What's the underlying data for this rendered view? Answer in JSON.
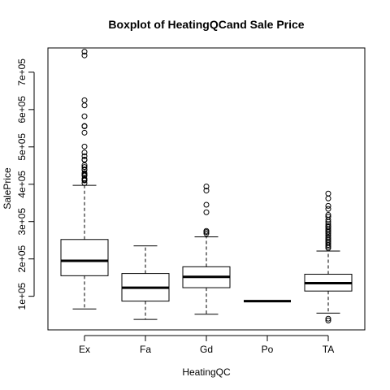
{
  "chart_data": {
    "type": "boxplot",
    "title": "Boxplot of HeatingQCand Sale Price",
    "xlabel": "HeatingQC",
    "ylabel": "SalePrice",
    "ylim": [
      10000,
      765000
    ],
    "y_ticks": [
      100000,
      200000,
      300000,
      400000,
      500000,
      600000,
      700000
    ],
    "y_tick_labels": [
      "1e+05",
      "2e+05",
      "3e+05",
      "4e+05",
      "5e+05",
      "6e+05",
      "7e+05"
    ],
    "categories": [
      "Ex",
      "Fa",
      "Gd",
      "Po",
      "TA"
    ],
    "boxes": [
      {
        "category": "Ex",
        "whisker_low": 66000,
        "q1": 155000,
        "median": 195000,
        "q3": 252000,
        "whisker_high": 397000,
        "outliers": [
          755000,
          745000,
          625000,
          611000,
          582000,
          556000,
          555000,
          538000,
          501000,
          485000,
          475000,
          466000,
          465000,
          451000,
          446000,
          440000,
          438000,
          430000,
          426000,
          424000,
          423000,
          415000,
          412000,
          410000,
          403000
        ]
      },
      {
        "category": "Fa",
        "whisker_low": 37900,
        "q1": 87000,
        "median": 123000,
        "q3": 161000,
        "whisker_high": 235000,
        "outliers": []
      },
      {
        "category": "Gd",
        "whisker_low": 52000,
        "q1": 123000,
        "median": 152000,
        "q3": 179000,
        "whisker_high": 259000,
        "outliers": [
          394000,
          383000,
          345000,
          325000,
          275000,
          272000,
          268000
        ]
      },
      {
        "category": "Po",
        "whisker_low": 87000,
        "q1": 87000,
        "median": 87000,
        "q3": 87000,
        "whisker_high": 87000,
        "outliers": []
      },
      {
        "category": "TA",
        "whisker_low": 55000,
        "q1": 114000,
        "median": 135000,
        "q3": 159000,
        "whisker_high": 221000,
        "outliers": [
          375000,
          362000,
          342000,
          334000,
          318000,
          313000,
          305000,
          299000,
          293000,
          288000,
          285000,
          280000,
          276000,
          272000,
          268000,
          263000,
          258000,
          254000,
          250000,
          246000,
          242000,
          237000,
          233000,
          229000,
          40000,
          35000
        ]
      }
    ]
  }
}
